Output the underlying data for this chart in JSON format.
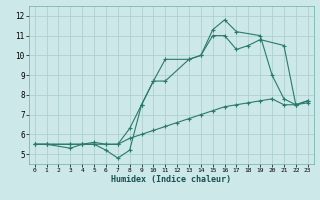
{
  "xlabel": "Humidex (Indice chaleur)",
  "bg_color": "#cce8e8",
  "grid_color": "#aacccc",
  "line_color": "#2a7a6a",
  "xlim": [
    -0.5,
    23.5
  ],
  "ylim": [
    4.5,
    12.5
  ],
  "xticks": [
    0,
    1,
    2,
    3,
    4,
    5,
    6,
    7,
    8,
    9,
    10,
    11,
    12,
    13,
    14,
    15,
    16,
    17,
    18,
    19,
    20,
    21,
    22,
    23
  ],
  "yticks": [
    5,
    6,
    7,
    8,
    9,
    10,
    11,
    12
  ],
  "line1_x": [
    0,
    1,
    3,
    4,
    5,
    6,
    7,
    8,
    9,
    10,
    11,
    12,
    13,
    14,
    15,
    16,
    17,
    18,
    19,
    20,
    21,
    22,
    23
  ],
  "line1_y": [
    5.5,
    5.5,
    5.5,
    5.5,
    5.5,
    5.5,
    5.5,
    5.8,
    6.0,
    6.2,
    6.4,
    6.6,
    6.8,
    7.0,
    7.2,
    7.4,
    7.5,
    7.6,
    7.7,
    7.8,
    7.5,
    7.5,
    7.6
  ],
  "line2_x": [
    0,
    1,
    3,
    4,
    5,
    6,
    7,
    8,
    9,
    10,
    11,
    13,
    14,
    15,
    16,
    17,
    19,
    20,
    21,
    22,
    23
  ],
  "line2_y": [
    5.5,
    5.5,
    5.3,
    5.5,
    5.5,
    5.2,
    4.8,
    5.2,
    7.5,
    8.7,
    8.7,
    9.8,
    10.0,
    11.3,
    11.8,
    11.2,
    11.0,
    9.0,
    7.8,
    7.5,
    7.7
  ],
  "line3_x": [
    0,
    1,
    3,
    4,
    5,
    6,
    7,
    8,
    9,
    10,
    11,
    13,
    14,
    15,
    16,
    17,
    18,
    19,
    21,
    22,
    23
  ],
  "line3_y": [
    5.5,
    5.5,
    5.5,
    5.5,
    5.6,
    5.5,
    5.5,
    6.3,
    7.5,
    8.7,
    9.8,
    9.8,
    10.0,
    11.0,
    11.0,
    10.3,
    10.5,
    10.8,
    10.5,
    7.5,
    7.7
  ]
}
